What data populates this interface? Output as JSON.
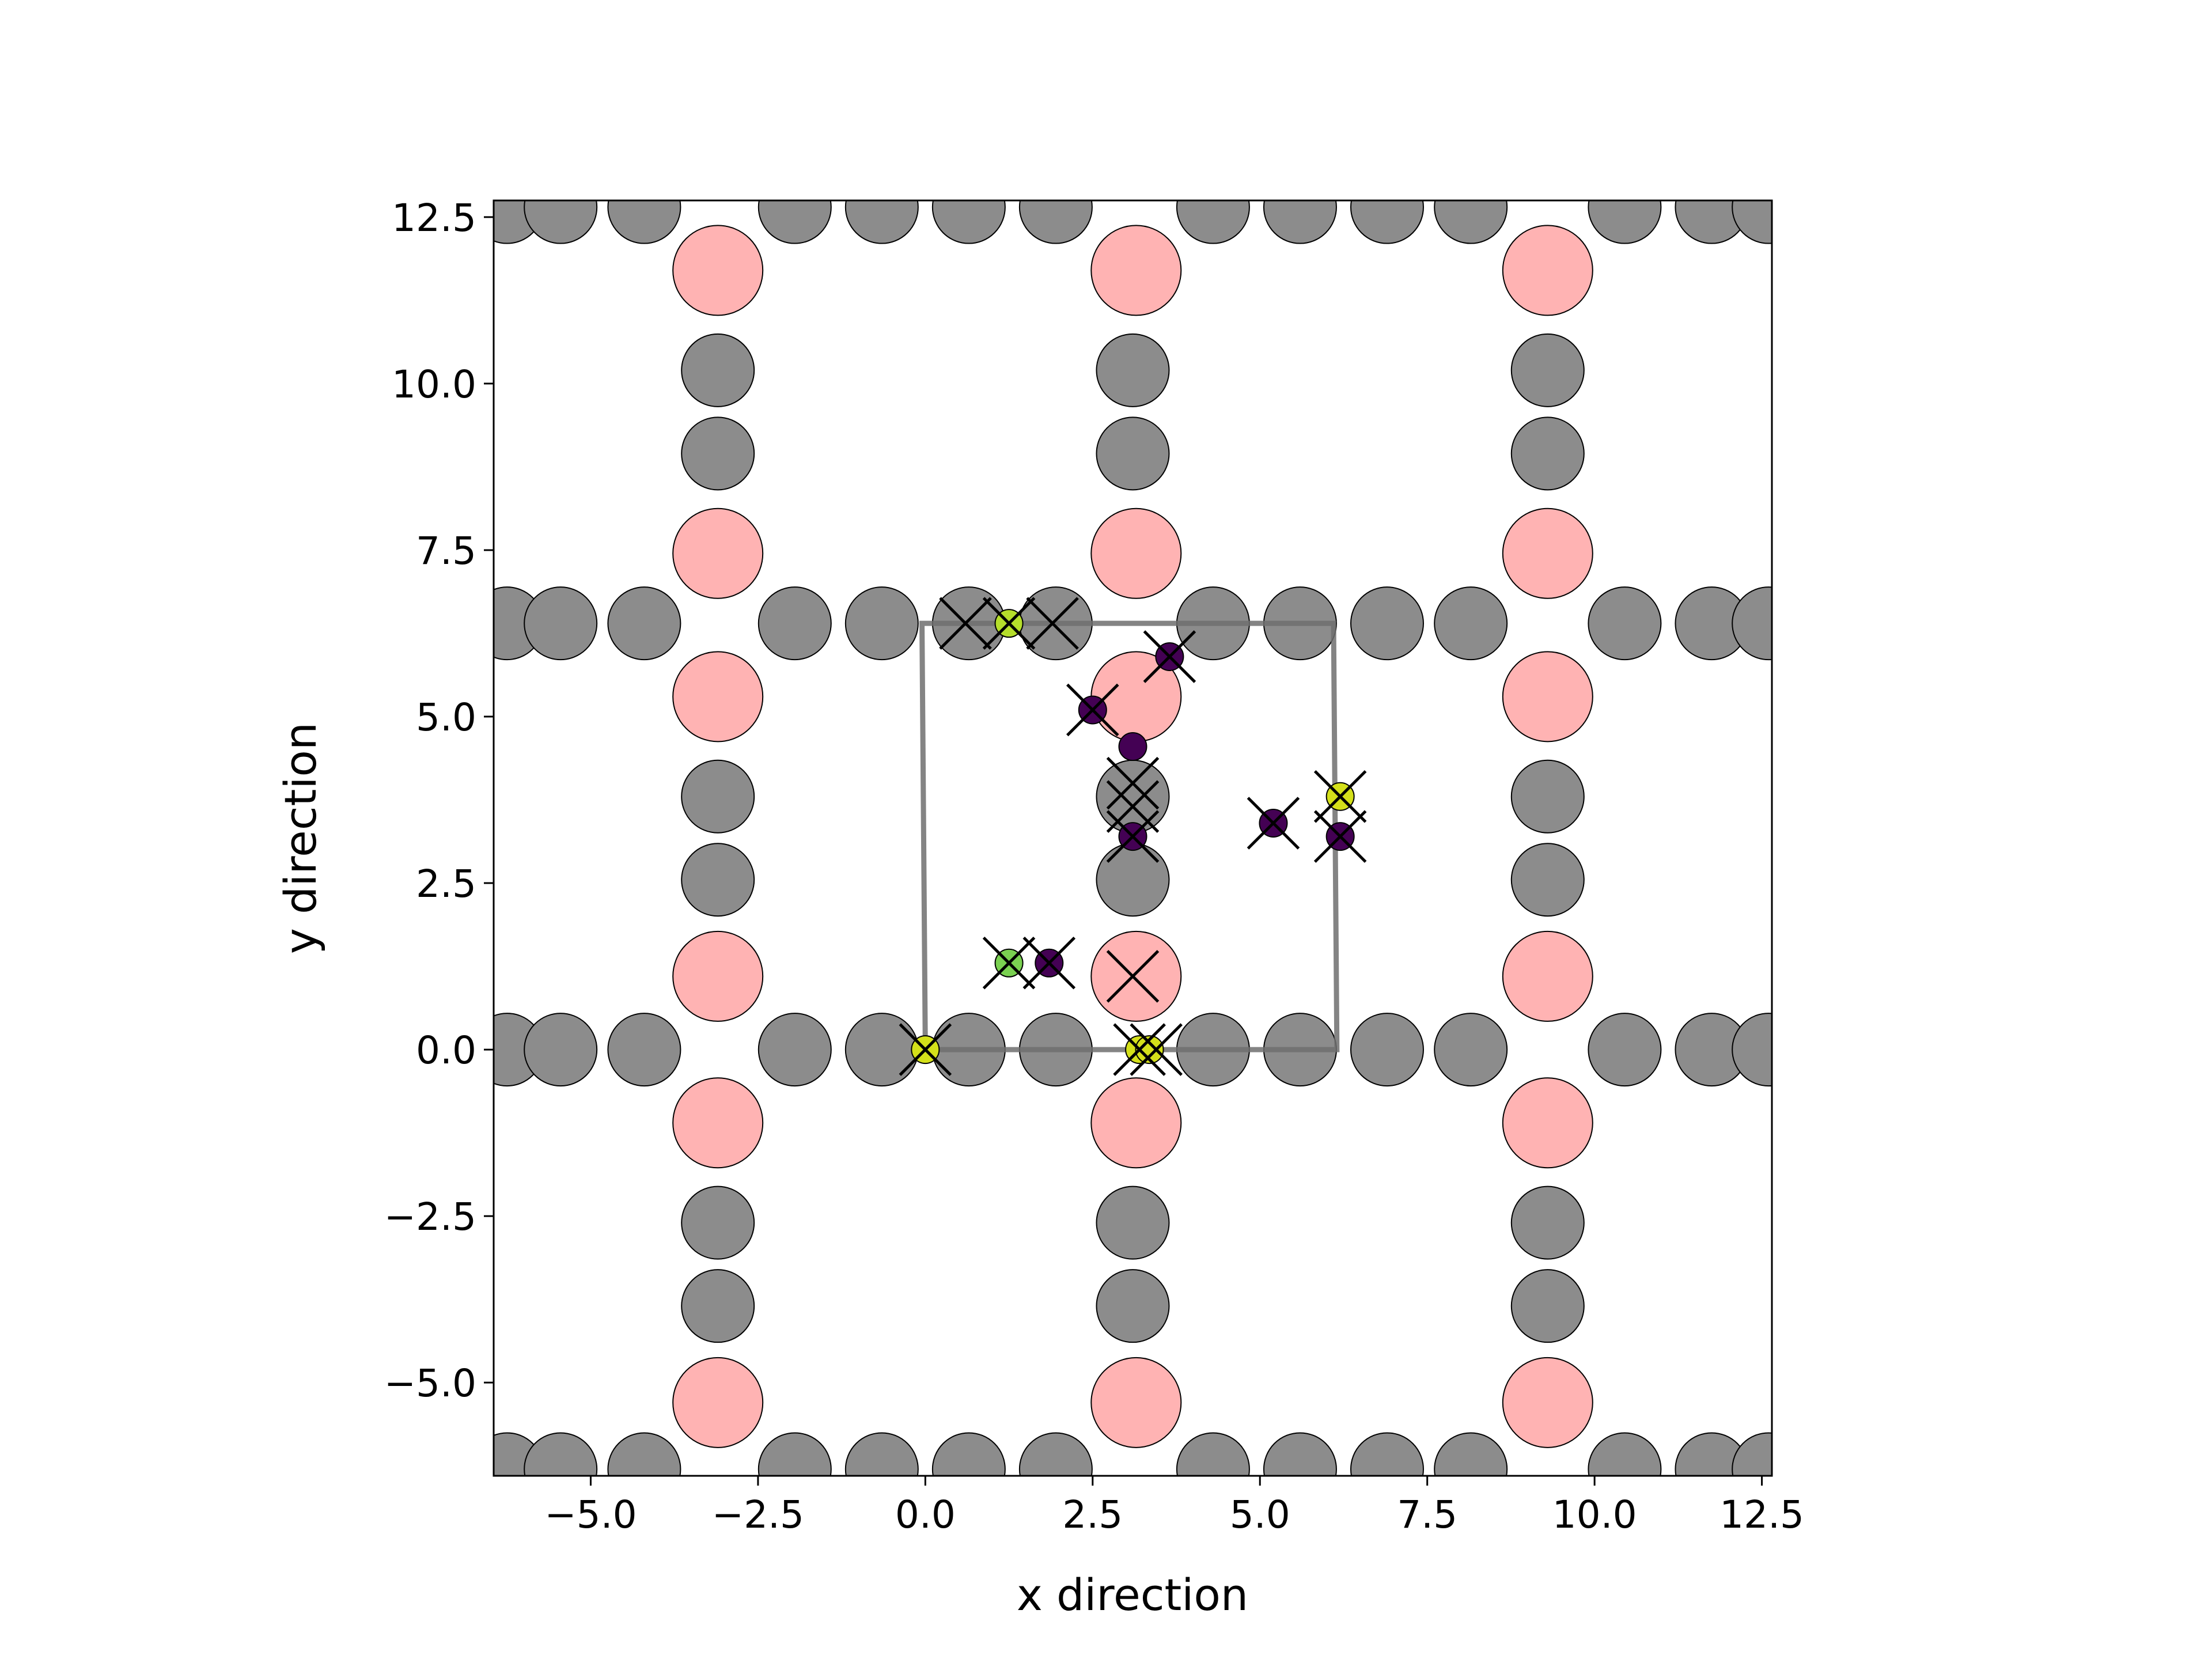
{
  "chart_data": {
    "type": "scatter",
    "xlabel": "x direction",
    "ylabel": "y direction",
    "xlim": [
      -6.45,
      12.65
    ],
    "ylim": [
      -6.4,
      12.75
    ],
    "xticks": [
      {
        "value": -5,
        "label": "−5.0"
      },
      {
        "value": -2.5,
        "label": "−2.5"
      },
      {
        "value": 0,
        "label": "0.0"
      },
      {
        "value": 2.5,
        "label": "2.5"
      },
      {
        "value": 5,
        "label": "5.0"
      },
      {
        "value": 7.5,
        "label": "7.5"
      },
      {
        "value": 10,
        "label": "10.0"
      },
      {
        "value": 12.5,
        "label": "12.5"
      }
    ],
    "yticks": [
      {
        "value": -5,
        "label": "−5.0"
      },
      {
        "value": -2.5,
        "label": "−2.5"
      },
      {
        "value": 0,
        "label": "0.0"
      },
      {
        "value": 2.5,
        "label": "2.5"
      },
      {
        "value": 5,
        "label": "5.0"
      },
      {
        "value": 7.5,
        "label": "7.5"
      },
      {
        "value": 10,
        "label": "10.0"
      },
      {
        "value": 12.5,
        "label": "12.5"
      }
    ],
    "series": [
      {
        "marker": "o",
        "color": "#8c8c8c",
        "edgecolor": "#000000",
        "x": [
          -6.25,
          -5.45,
          -4.2,
          -1.95,
          -0.65,
          0.65,
          1.95,
          4.3,
          5.6,
          6.9,
          8.15,
          10.45,
          11.75,
          12.6,
          -6.25,
          -5.45,
          -4.2,
          -1.95,
          -0.65,
          0.65,
          1.95,
          4.3,
          5.6,
          6.9,
          8.15,
          10.45,
          11.75,
          12.6,
          -6.25,
          -5.45,
          -4.2,
          -1.95,
          -0.65,
          0.65,
          1.95,
          4.3,
          5.6,
          6.9,
          8.15,
          10.45,
          11.75,
          12.6,
          -6.25,
          -5.45,
          -4.2,
          -1.95,
          -0.65,
          0.65,
          1.95,
          4.3,
          5.6,
          6.9,
          8.15,
          10.45,
          11.75,
          12.6,
          -3.1,
          -3.1,
          -3.1,
          -3.1,
          -3.1,
          -3.1,
          3.1,
          3.1,
          3.1,
          3.1,
          3.1,
          3.1,
          9.3,
          9.3,
          9.3,
          9.3,
          9.3,
          9.3
        ],
        "y": [
          12.65,
          12.65,
          12.65,
          12.65,
          12.65,
          12.65,
          12.65,
          12.65,
          12.65,
          12.65,
          12.65,
          12.65,
          12.65,
          12.65,
          6.4,
          6.4,
          6.4,
          6.4,
          6.4,
          6.4,
          6.4,
          6.4,
          6.4,
          6.4,
          6.4,
          6.4,
          6.4,
          6.4,
          0,
          0,
          0,
          0,
          0,
          0,
          0,
          0,
          0,
          0,
          0,
          0,
          0,
          0,
          -6.3,
          -6.3,
          -6.3,
          -6.3,
          -6.3,
          -6.3,
          -6.3,
          -6.3,
          -6.3,
          -6.3,
          -6.3,
          -6.3,
          -6.3,
          -6.3,
          10.2,
          8.95,
          3.8,
          2.55,
          -2.6,
          -3.85,
          10.2,
          8.95,
          3.8,
          2.55,
          -2.6,
          -3.85,
          10.2,
          8.95,
          3.8,
          2.55,
          -2.6,
          -3.85
        ]
      },
      {
        "marker": "o",
        "color": "#ffb3b3",
        "edgecolor": "#000000",
        "x": [
          -3.1,
          -3.1,
          -3.1,
          -3.1,
          -3.1,
          -3.1,
          3.15,
          3.15,
          3.15,
          3.15,
          3.15,
          3.15,
          9.3,
          9.3,
          9.3,
          9.3,
          9.3,
          9.3
        ],
        "y": [
          11.7,
          7.45,
          5.3,
          1.1,
          -1.1,
          -5.3,
          11.7,
          7.45,
          5.3,
          1.1,
          -1.1,
          -5.3,
          11.7,
          7.45,
          5.3,
          1.1,
          -1.1,
          -5.3
        ]
      },
      {
        "linestyle": "-",
        "color": "#6e6e6e",
        "x": [
          0,
          6.15,
          6.1,
          -0.05,
          0
        ],
        "y": [
          0,
          0,
          6.4,
          6.4,
          0
        ]
      },
      {
        "marker": "o",
        "edgecolor": "#000000",
        "colors": [
          "#d4e01a",
          "#b5de2b",
          "#440154",
          "#440154",
          "#440154",
          "#440154",
          "#440154",
          "#d4e01a",
          "#440154",
          "#7ad151",
          "#440154",
          "#d4e01a",
          "#d4e01a"
        ],
        "x": [
          0,
          1.25,
          3.65,
          2.5,
          3.1,
          3.1,
          5.2,
          6.2,
          6.2,
          1.25,
          1.85,
          3.2,
          3.35
        ],
        "y": [
          0,
          6.4,
          5.9,
          5.1,
          4.55,
          3.2,
          3.4,
          3.8,
          3.2,
          1.3,
          1.3,
          0,
          0
        ]
      },
      {
        "marker": "x",
        "color": "#000000",
        "x": [
          0,
          0.6,
          1.25,
          1.9,
          3.65,
          2.5,
          3.1,
          3.1,
          3.1,
          5.2,
          6.2,
          6.2,
          1.25,
          1.85,
          3.1,
          3.2,
          3.45
        ],
        "y": [
          0,
          6.4,
          6.4,
          6.4,
          5.9,
          5.1,
          4.0,
          3.65,
          3.2,
          3.4,
          3.8,
          3.2,
          1.3,
          1.3,
          1.1,
          0,
          0
        ]
      }
    ]
  }
}
